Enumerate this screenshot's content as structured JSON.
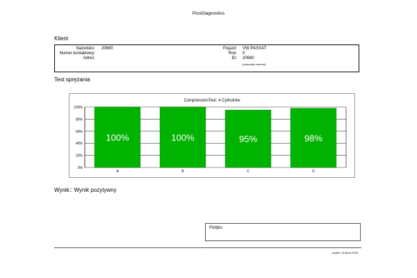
{
  "app_title": "PicoDiagnostics",
  "client": {
    "section_title": "Klient",
    "name_label": "Nazwisko:",
    "name_value": "20690",
    "contact_label": "Numer kontaktowy:",
    "address_label": "Adres:",
    "vehicle_label": "Pojazd:",
    "vehicle_value": "VW PASSAT",
    "year_label": "Rok:",
    "year_value": "0",
    "id_label": "ID:",
    "id_value": "20690",
    "id_note": "(manually entered)"
  },
  "test_section_title": "Test sprężania",
  "chart_data": {
    "type": "bar",
    "title": "CompressionTest: 4 Cylindrów",
    "categories": [
      "A",
      "B",
      "C",
      "D"
    ],
    "values": [
      100,
      100,
      95,
      98
    ],
    "value_labels": [
      "100%",
      "100%",
      "95%",
      "98%"
    ],
    "yticks": [
      "0%",
      "20%",
      "40%",
      "60%",
      "80%",
      "100%"
    ],
    "ylim": [
      0,
      100
    ],
    "bar_color": "#00b300",
    "grid": true
  },
  "result": {
    "label": "Wynik::",
    "value": "Wynik pozytywny"
  },
  "signature_label": "Podpis:",
  "footer": {
    "center": "-",
    "date": "piątek, 18 lipca 2025"
  }
}
